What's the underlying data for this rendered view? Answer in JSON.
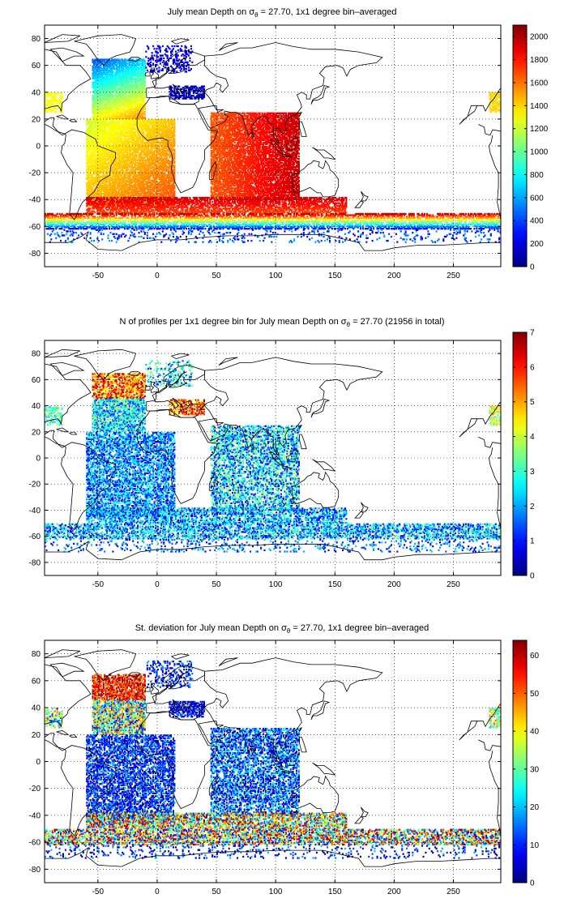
{
  "chart_data": [
    {
      "type": "heatmap",
      "title": "July mean Depth on σ",
      "title_sub": "θ",
      "title_rest": " = 27.70, 1x1 degree bin–averaged",
      "x_ticks": [
        -50,
        0,
        50,
        100,
        150,
        200,
        250
      ],
      "y_ticks": [
        80,
        60,
        40,
        20,
        0,
        -20,
        -40,
        -60,
        -80
      ],
      "xlim": [
        -95,
        290
      ],
      "ylim": [
        -90,
        90
      ],
      "colorbar_ticks": [
        0,
        200,
        400,
        600,
        800,
        1000,
        1200,
        1400,
        1600,
        1800,
        2000
      ],
      "colorbar_range": [
        0,
        2100
      ],
      "colormap": "jet",
      "grid": true
    },
    {
      "type": "heatmap",
      "title": "N of profiles per 1x1 degree bin for July mean Depth on σ",
      "title_sub": "θ",
      "title_rest": " = 27.70 (21956 in total)",
      "x_ticks": [
        -50,
        0,
        50,
        100,
        150,
        200,
        250
      ],
      "y_ticks": [
        80,
        60,
        40,
        20,
        0,
        -20,
        -40,
        -60,
        -80
      ],
      "xlim": [
        -95,
        290
      ],
      "ylim": [
        -90,
        90
      ],
      "colorbar_ticks": [
        0,
        1,
        2,
        3,
        4,
        5,
        6,
        7
      ],
      "colorbar_range": [
        0,
        7
      ],
      "colormap": "jet",
      "grid": true
    },
    {
      "type": "heatmap",
      "title": "St. deviation for July mean Depth on σ",
      "title_sub": "θ",
      "title_rest": " = 27.70, 1x1 degree bin–averaged",
      "x_ticks": [
        -50,
        0,
        50,
        100,
        150,
        200,
        250
      ],
      "y_ticks": [
        80,
        60,
        40,
        20,
        0,
        -20,
        -40,
        -60,
        -80
      ],
      "xlim": [
        -95,
        290
      ],
      "ylim": [
        -90,
        90
      ],
      "colorbar_ticks": [
        0,
        10,
        20,
        30,
        40,
        50,
        60
      ],
      "colorbar_range": [
        0,
        64
      ],
      "colormap": "jet",
      "grid": true
    }
  ]
}
